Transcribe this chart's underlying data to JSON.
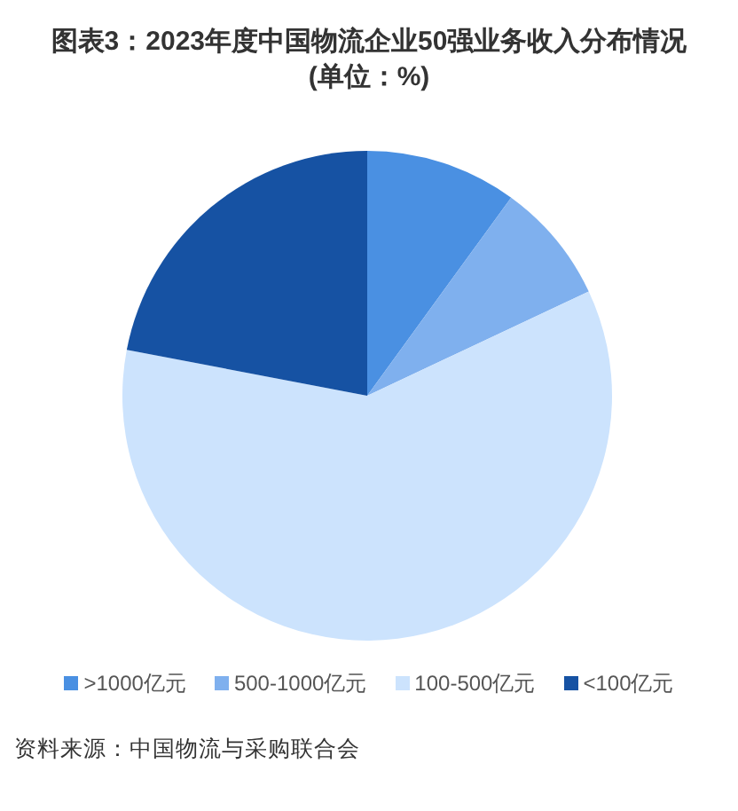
{
  "chart_data": {
    "type": "pie",
    "title": "图表3：2023年度中国物流企业50强业务收入分布情况(单位：%)",
    "categories": [
      ">1000亿元",
      "500-1000亿元",
      "100-500亿元",
      "<100亿元"
    ],
    "values": [
      10,
      8,
      60,
      22
    ],
    "colors": [
      "#4a90e2",
      "#7fb0ee",
      "#cce3fd",
      "#1652a3"
    ],
    "legend": "bottom",
    "annotations": [
      "资料来源：中国物流与采购联合会"
    ]
  }
}
